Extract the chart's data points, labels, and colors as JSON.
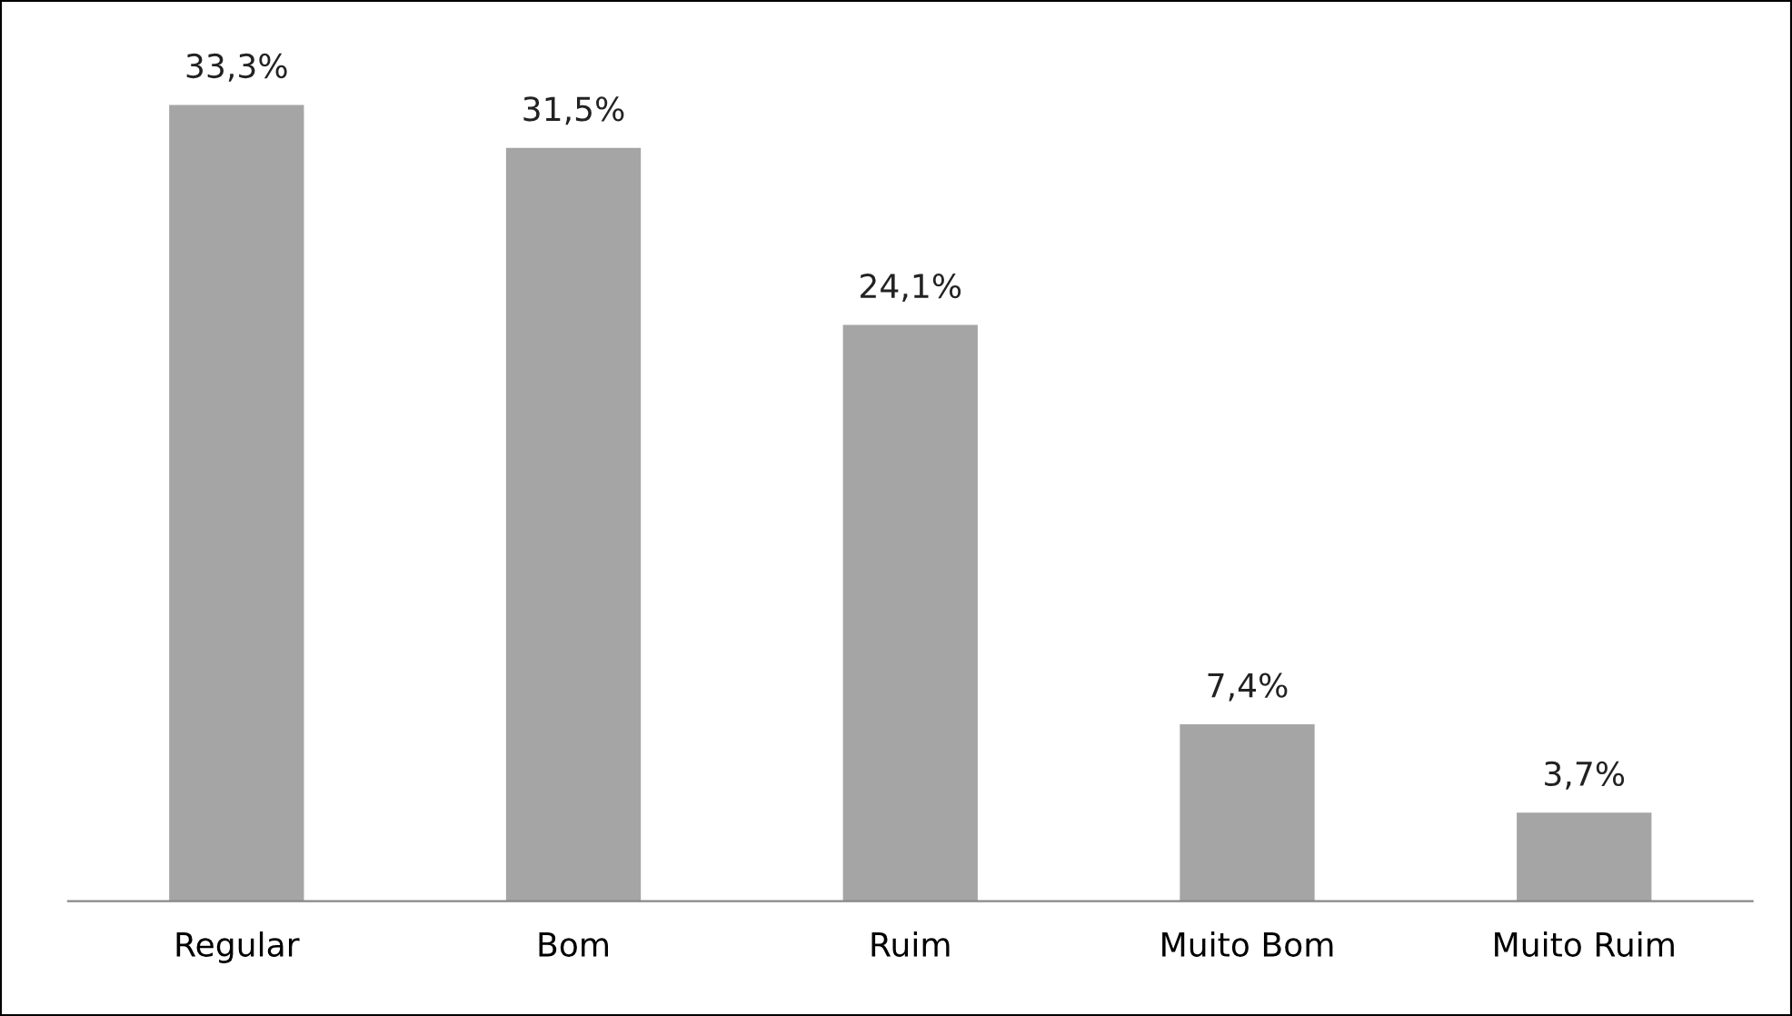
{
  "chart_data": {
    "type": "bar",
    "categories": [
      "Regular",
      "Bom",
      "Ruim",
      "Muito Bom",
      "Muito Ruim"
    ],
    "values": [
      33.3,
      31.5,
      24.1,
      7.4,
      3.7
    ],
    "value_labels": [
      "33,3%",
      "31,5%",
      "24,1%",
      "7,4%",
      "3,7%"
    ],
    "color": "#a5a5a5",
    "grid": false,
    "legend": false
  }
}
